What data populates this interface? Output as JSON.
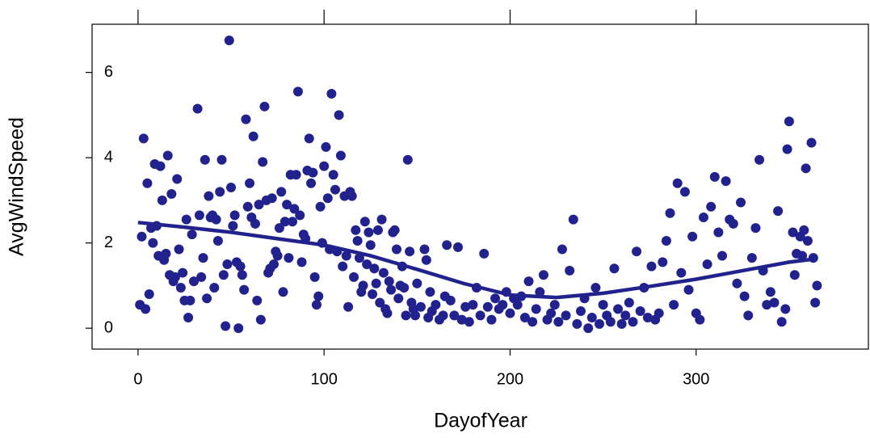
{
  "chart_data": {
    "type": "scatter",
    "xlabel": "DayofYear",
    "ylabel": "AvgWindSpeed",
    "xlim": [
      -24.7,
      392.6
    ],
    "ylim": [
      -0.49,
      7.13
    ],
    "xticks": [
      0,
      100,
      200,
      300
    ],
    "yticks": [
      0,
      2,
      4,
      6
    ],
    "color": "#22228f",
    "series": [
      {
        "kind": "points",
        "x": [
          1,
          2,
          3,
          4,
          5,
          6,
          7,
          8,
          9,
          10,
          11,
          12,
          13,
          14,
          15,
          16,
          17,
          18,
          19,
          20,
          21,
          22,
          23,
          24,
          25,
          26,
          27,
          28,
          29,
          30,
          32,
          33,
          34,
          35,
          36,
          37,
          38,
          39,
          40,
          41,
          42,
          43,
          44,
          45,
          46,
          47,
          48,
          49,
          50,
          51,
          52,
          53,
          54,
          55,
          56,
          57,
          58,
          59,
          60,
          61,
          62,
          63,
          64,
          65,
          66,
          67,
          68,
          69,
          70,
          71,
          72,
          73,
          74,
          75,
          76,
          77,
          78,
          79,
          80,
          81,
          82,
          83,
          84,
          85,
          86,
          87,
          88,
          89,
          90,
          91,
          92,
          93,
          94,
          95,
          96,
          97,
          98,
          99,
          100,
          101,
          102,
          103,
          104,
          105,
          106,
          107,
          108,
          109,
          110,
          111,
          112,
          113,
          114,
          115,
          116,
          117,
          118,
          119,
          120,
          121,
          122,
          123,
          124,
          125,
          126,
          127,
          128,
          129,
          130,
          131,
          132,
          133,
          134,
          135,
          136,
          137,
          138,
          139,
          140,
          141,
          142,
          143,
          144,
          145,
          146,
          147,
          148,
          149,
          150,
          152,
          154,
          155,
          156,
          157,
          158,
          160,
          162,
          164,
          165,
          166,
          168,
          170,
          172,
          174,
          176,
          178,
          180,
          182,
          184,
          186,
          188,
          190,
          192,
          194,
          196,
          198,
          200,
          202,
          204,
          206,
          208,
          210,
          212,
          214,
          216,
          218,
          220,
          222,
          224,
          226,
          228,
          230,
          232,
          234,
          236,
          238,
          240,
          242,
          244,
          246,
          248,
          250,
          252,
          254,
          256,
          258,
          260,
          262,
          264,
          266,
          268,
          270,
          272,
          274,
          276,
          278,
          280,
          282,
          284,
          286,
          288,
          290,
          292,
          294,
          296,
          298,
          300,
          302,
          304,
          306,
          308,
          310,
          312,
          314,
          316,
          318,
          320,
          322,
          324,
          326,
          328,
          330,
          332,
          334,
          336,
          338,
          340,
          342,
          344,
          346,
          348,
          349,
          350,
          352,
          353,
          354,
          356,
          357,
          358,
          359,
          360,
          362,
          363,
          364,
          365
        ],
        "values": [
          0.55,
          2.15,
          4.45,
          0.45,
          3.4,
          0.8,
          2.35,
          2.0,
          3.85,
          2.4,
          1.7,
          3.8,
          3.0,
          1.6,
          1.75,
          4.05,
          1.25,
          3.15,
          1.1,
          1.2,
          3.5,
          1.85,
          0.95,
          1.3,
          0.65,
          2.55,
          0.25,
          0.65,
          2.2,
          1.1,
          5.15,
          2.65,
          1.2,
          1.65,
          3.95,
          0.7,
          3.1,
          2.6,
          2.65,
          0.95,
          2.55,
          2.05,
          3.2,
          3.95,
          1.25,
          0.05,
          1.5,
          6.75,
          3.3,
          2.4,
          2.65,
          1.55,
          0.0,
          1.45,
          1.25,
          0.9,
          4.9,
          2.85,
          3.4,
          2.6,
          4.5,
          2.45,
          0.65,
          2.9,
          0.2,
          3.9,
          5.2,
          3.0,
          1.3,
          1.4,
          3.05,
          1.5,
          1.8,
          1.7,
          2.35,
          3.2,
          0.85,
          2.5,
          2.9,
          1.65,
          3.6,
          2.5,
          2.8,
          3.6,
          5.55,
          2.65,
          1.55,
          2.2,
          2.1,
          3.7,
          4.45,
          3.4,
          3.65,
          1.2,
          0.55,
          0.75,
          2.85,
          2.0,
          3.8,
          4.25,
          3.05,
          1.85,
          5.5,
          3.6,
          3.25,
          1.8,
          5.0,
          4.05,
          1.45,
          3.1,
          1.7,
          0.5,
          3.2,
          3.1,
          1.2,
          2.3,
          2.05,
          1.65,
          0.85,
          1.0,
          2.5,
          1.5,
          2.25,
          1.95,
          0.8,
          1.4,
          1.05,
          2.3,
          0.6,
          2.55,
          1.3,
          0.45,
          0.35,
          1.1,
          0.9,
          2.25,
          2.3,
          1.85,
          0.7,
          1.0,
          1.45,
          0.95,
          0.3,
          3.95,
          1.8,
          0.6,
          0.45,
          0.3,
          1.05,
          0.5,
          1.85,
          1.6,
          0.25,
          0.85,
          0.4,
          0.55,
          0.2,
          0.3,
          0.75,
          1.95,
          0.65,
          0.3,
          1.9,
          0.2,
          0.5,
          0.15,
          0.55,
          0.95,
          0.3,
          1.75,
          0.5,
          0.2,
          0.7,
          0.45,
          0.55,
          0.85,
          0.35,
          0.7,
          0.55,
          0.75,
          0.25,
          1.1,
          0.15,
          0.45,
          0.85,
          1.25,
          0.2,
          0.35,
          0.55,
          0.15,
          1.85,
          0.3,
          1.35,
          2.55,
          0.1,
          0.4,
          0.7,
          0.0,
          0.25,
          0.95,
          0.1,
          0.55,
          0.3,
          0.15,
          1.4,
          0.45,
          0.1,
          0.3,
          0.6,
          0.15,
          1.8,
          0.4,
          0.95,
          0.25,
          1.45,
          0.2,
          0.35,
          1.55,
          2.05,
          2.7,
          0.55,
          3.4,
          1.3,
          3.2,
          0.9,
          2.15,
          0.35,
          0.2,
          2.6,
          1.5,
          2.85,
          3.55,
          2.25,
          1.7,
          3.45,
          2.55,
          2.45,
          1.05,
          2.95,
          0.75,
          0.3,
          1.65,
          2.35,
          3.95,
          1.35,
          0.55,
          0.85,
          0.6,
          2.75,
          0.15,
          0.45,
          4.2,
          4.85,
          2.25,
          1.25,
          1.75,
          2.15,
          1.7,
          2.3,
          3.75,
          2.05,
          4.35,
          1.65,
          0.6,
          1.0
        ]
      },
      {
        "kind": "smooth",
        "x": [
          0,
          25,
          50,
          75,
          100,
          125,
          150,
          175,
          200,
          225,
          250,
          275,
          300,
          325,
          350,
          365
        ],
        "values": [
          2.48,
          2.37,
          2.25,
          2.1,
          1.95,
          1.7,
          1.38,
          1.05,
          0.78,
          0.72,
          0.82,
          0.98,
          1.15,
          1.35,
          1.55,
          1.63
        ]
      }
    ]
  }
}
